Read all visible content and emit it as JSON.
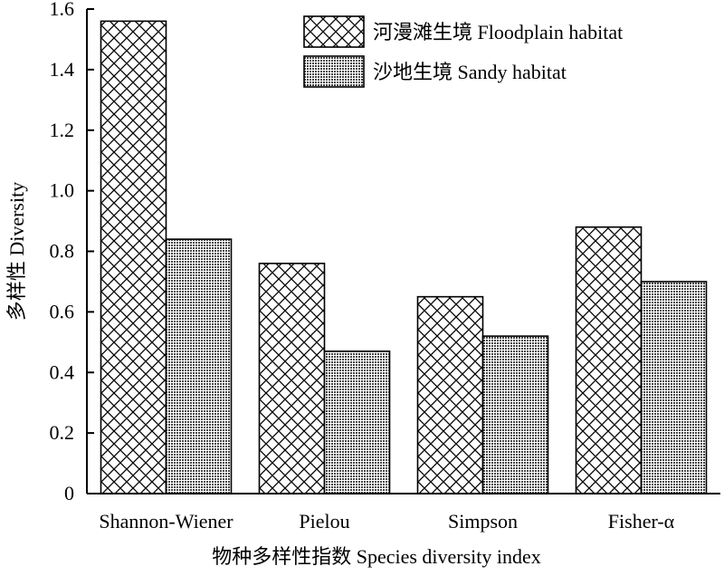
{
  "chart_data": {
    "type": "bar",
    "xlabel": "物种多样性指数 Species diversity index",
    "ylabel": "多样性 Diversity",
    "categories": [
      "Shannon-Wiener",
      "Pielou",
      "Simpson",
      "Fisher-α"
    ],
    "series": [
      {
        "name": "河漫滩生境 Floodplain habitat",
        "values": [
          1.56,
          0.76,
          0.65,
          0.88
        ],
        "pattern": "crosshatch"
      },
      {
        "name": "沙地生境 Sandy habitat",
        "values": [
          0.84,
          0.47,
          0.52,
          0.7
        ],
        "pattern": "dots"
      }
    ],
    "ylim": [
      0,
      1.6
    ],
    "yticks": [
      "0",
      "0.2",
      "0.4",
      "0.6",
      "0.8",
      "1.0",
      "1.2",
      "1.4",
      "1.6"
    ],
    "grid": false,
    "legend_position": "top-right"
  }
}
